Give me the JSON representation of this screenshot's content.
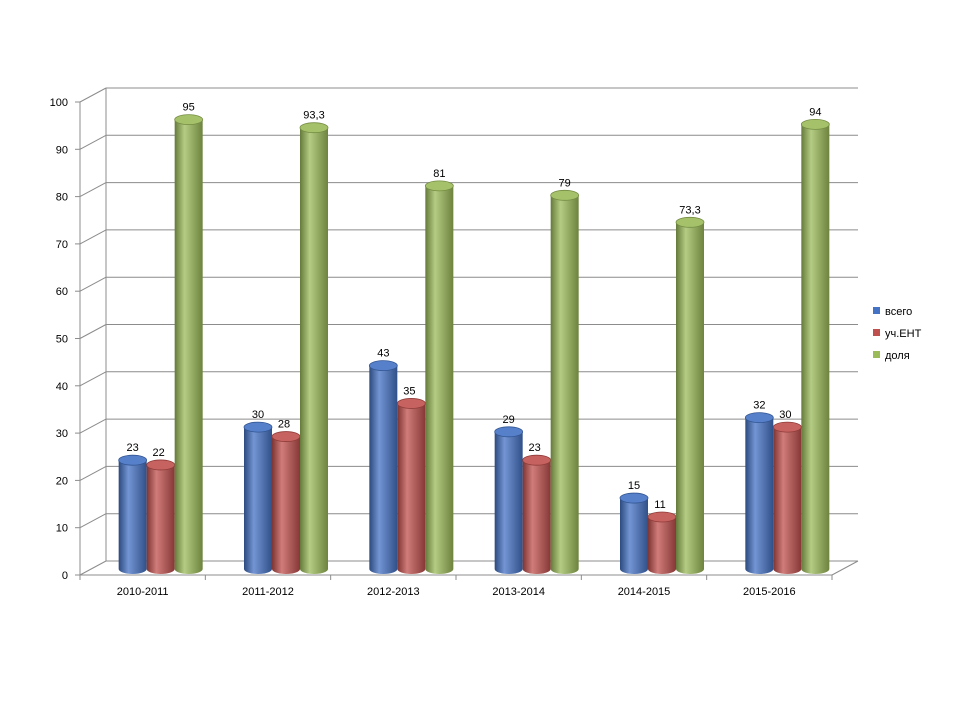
{
  "chart_data": {
    "type": "bar",
    "categories": [
      "2010-2011",
      "2011-2012",
      "2012-2013",
      "2013-2014",
      "2014-2015",
      "2015-2016"
    ],
    "series": [
      {
        "name": "всего",
        "color": "#4472C4",
        "values": [
          23,
          30,
          43,
          29,
          15,
          32
        ],
        "labels": [
          "23",
          "30",
          "43",
          "29",
          "15",
          "32"
        ]
      },
      {
        "name": "уч.ЕНТ",
        "color": "#C0504D",
        "values": [
          22,
          28,
          35,
          23,
          11,
          30
        ],
        "labels": [
          "22",
          "28",
          "35",
          "23",
          "11",
          "30"
        ]
      },
      {
        "name": "доля",
        "color": "#9BBB59",
        "values": [
          95,
          93.3,
          81,
          79,
          73.3,
          94
        ],
        "labels": [
          "95",
          "93,3",
          "81",
          "79",
          "73,3",
          "94"
        ]
      }
    ],
    "yticks": [
      "0",
      "10",
      "20",
      "30",
      "40",
      "50",
      "60",
      "70",
      "80",
      "90",
      "100"
    ],
    "ylim": [
      0,
      100
    ],
    "grid": true,
    "legend_position": "right",
    "style": "3d-cylinder"
  }
}
